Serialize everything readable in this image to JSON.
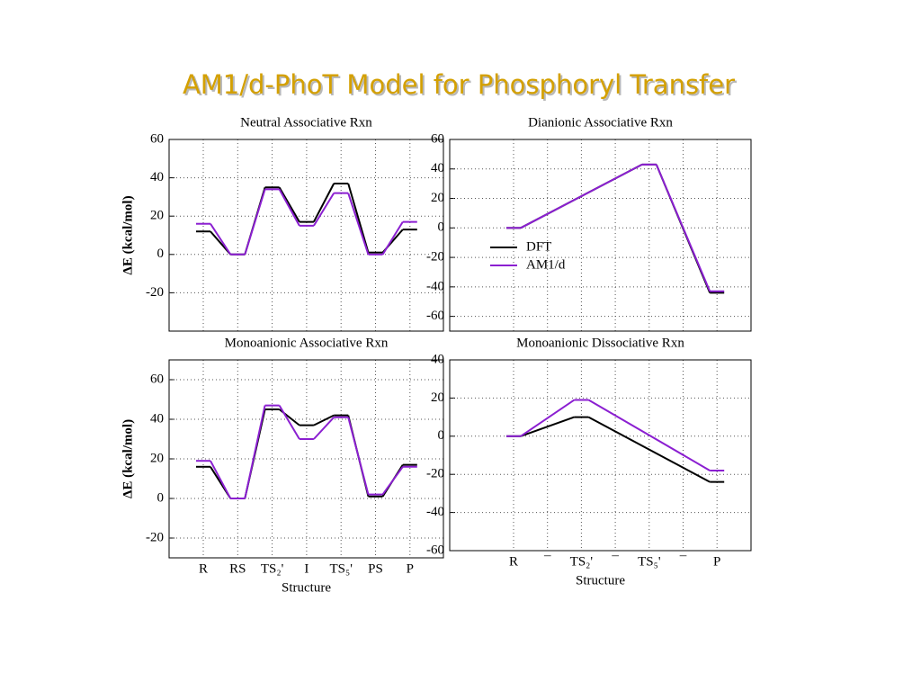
{
  "title": "AM1/d-PhoT Model for Phosphoryl Transfer",
  "chart_data": [
    {
      "type": "line",
      "title": "Neutral Associative Rxn",
      "y_label": "ΔE (kcal/mol)",
      "categories": [
        null,
        null,
        null,
        null,
        null,
        null,
        null
      ],
      "series": [
        {
          "color": "#000000",
          "values": [
            12,
            0,
            35,
            17,
            37,
            1,
            13
          ]
        },
        {
          "color": "#8b1fd1",
          "values": [
            16,
            0,
            34,
            15,
            32,
            0,
            17
          ]
        }
      ],
      "ylim": [
        -40,
        60
      ],
      "yticks": [
        -20,
        0,
        20,
        40,
        60
      ],
      "grid": true
    },
    {
      "type": "line",
      "title": "Dianionic Associative Rxn",
      "categories": [
        null,
        null,
        null,
        null,
        null,
        null,
        null
      ],
      "series": [
        {
          "name": "DFT",
          "color": "#000000",
          "values": [
            0,
            null,
            null,
            null,
            43,
            null,
            -44
          ]
        },
        {
          "name": "AM1/d",
          "color": "#8b1fd1",
          "values": [
            0,
            null,
            null,
            null,
            43,
            null,
            -43
          ]
        }
      ],
      "ylim": [
        -70,
        60
      ],
      "yticks": [
        -60,
        -40,
        -20,
        0,
        20,
        40,
        60
      ],
      "grid": true,
      "legend": "center left"
    },
    {
      "type": "line",
      "title": "Monoanionic Associative Rxn",
      "y_label": "ΔE (kcal/mol)",
      "x_label": "Structure",
      "categories": [
        "R",
        "RS",
        "TS₂'",
        "I",
        "TS₅'",
        "PS",
        "P"
      ],
      "series": [
        {
          "color": "#000000",
          "values": [
            16,
            0,
            45,
            37,
            42,
            1,
            17
          ]
        },
        {
          "color": "#8b1fd1",
          "values": [
            19,
            0,
            47,
            30,
            41,
            2,
            16
          ]
        }
      ],
      "ylim": [
        -30,
        70
      ],
      "yticks": [
        -20,
        0,
        20,
        40,
        60
      ],
      "grid": true
    },
    {
      "type": "line",
      "title": "Monoanionic Dissociative Rxn",
      "x_label": "Structure",
      "categories": [
        "R",
        "¯",
        "TS₂'",
        "¯",
        "TS₅'",
        "¯",
        "P"
      ],
      "series": [
        {
          "color": "#000000",
          "values": [
            0,
            null,
            10,
            null,
            null,
            null,
            -24
          ]
        },
        {
          "color": "#8b1fd1",
          "values": [
            0,
            null,
            19,
            null,
            null,
            null,
            -18
          ]
        }
      ],
      "ylim": [
        -60,
        40
      ],
      "yticks": [
        -60,
        -40,
        -20,
        0,
        20,
        40
      ],
      "grid": true
    }
  ]
}
